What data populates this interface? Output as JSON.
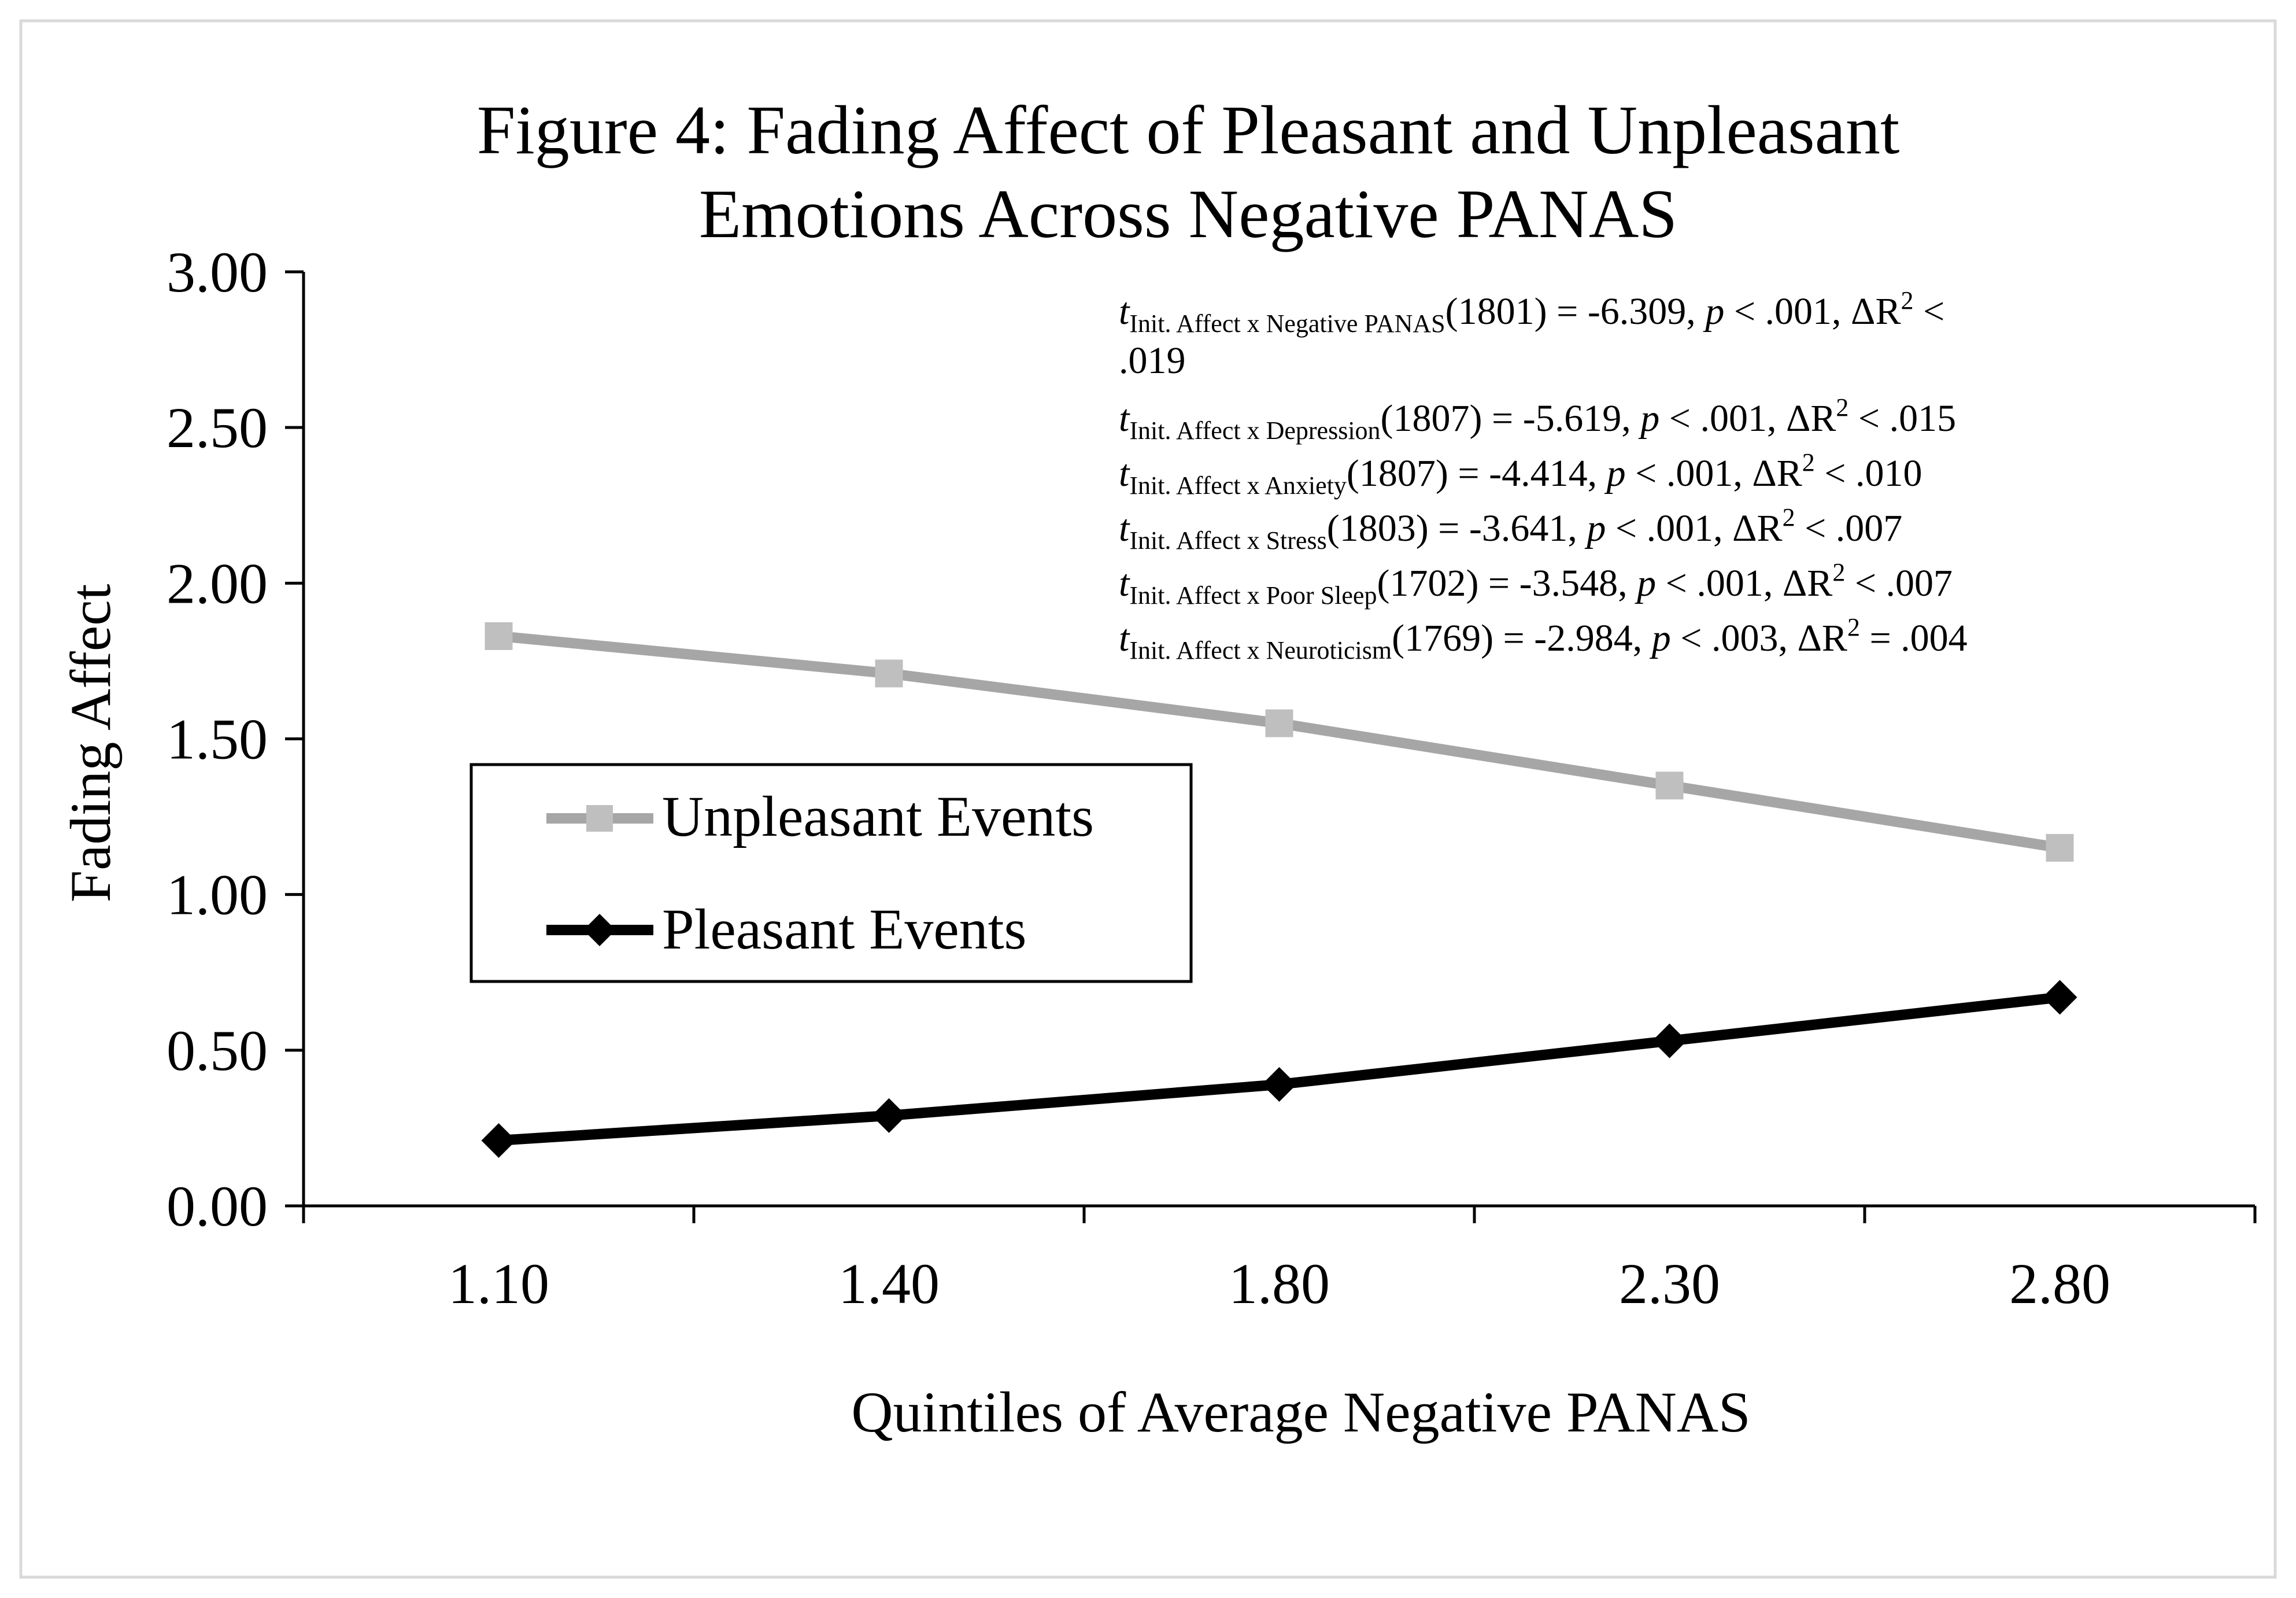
{
  "chart_data": {
    "type": "line",
    "title_lines": [
      "Figure 4: Fading Affect of Pleasant and Unpleasant",
      "Emotions Across Negative PANAS"
    ],
    "xlabel": "Quintiles of Average Negative PANAS",
    "ylabel": "Fading Affect",
    "categories": [
      "1.10",
      "1.40",
      "1.80",
      "2.30",
      "2.80"
    ],
    "yticks": [
      "0.00",
      "0.50",
      "1.00",
      "1.50",
      "2.00",
      "2.50",
      "3.00"
    ],
    "ylim": [
      0,
      3
    ],
    "grid": false,
    "legend_position": "middle-left",
    "series": [
      {
        "name": "Unpleasant Events",
        "values": [
          1.83,
          1.71,
          1.55,
          1.35,
          1.15
        ],
        "color": "#a6a6a6",
        "marker": "square"
      },
      {
        "name": "Pleasant Events",
        "values": [
          0.21,
          0.29,
          0.39,
          0.53,
          0.67
        ],
        "color": "#000000",
        "marker": "diamond"
      }
    ],
    "annotations": [
      {
        "t": "t",
        "sub": "Init. Affect x Negative PANAS",
        "rest": "(1801) = -6.309, ",
        "p": "p",
        "prest": " < .001, ΔR",
        "sup": "2",
        "end": " <"
      },
      {
        "t": "",
        "sub": "",
        "rest": ".019",
        "p": "",
        "prest": "",
        "sup": "",
        "end": ""
      },
      {
        "t": "t",
        "sub": "Init. Affect x Depression",
        "rest": "(1807) = -5.619, ",
        "p": "p",
        "prest": " < .001, ΔR",
        "sup": "2",
        "end": " < .015"
      },
      {
        "t": "t",
        "sub": "Init. Affect x Anxiety",
        "rest": "(1807) = -4.414, ",
        "p": "p",
        "prest": " < .001, ΔR",
        "sup": "2",
        "end": " < .010"
      },
      {
        "t": "t",
        "sub": "Init. Affect x Stress",
        "rest": "(1803) = -3.641, ",
        "p": "p",
        "prest": " < .001, ΔR",
        "sup": "2",
        "end": "  < .007"
      },
      {
        "t": "t",
        "sub": "Init. Affect x Poor Sleep",
        "rest": "(1702) = -3.548, ",
        "p": "p",
        "prest": " < .001, ΔR",
        "sup": "2",
        "end": " < .007"
      },
      {
        "t": "t",
        "sub": "Init. Affect x Neuroticism",
        "rest": "(1769) = -2.984, ",
        "p": "p",
        "prest": " < .003, ΔR",
        "sup": "2",
        "end": " = .004"
      }
    ]
  }
}
